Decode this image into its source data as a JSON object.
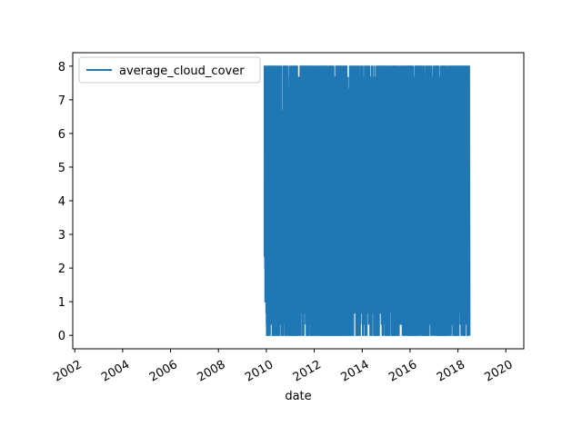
{
  "chart_data": {
    "type": "line",
    "title": "",
    "xlabel": "date",
    "ylabel": "",
    "xlim": [
      "2001-12-01",
      "2020-10-01"
    ],
    "ylim": [
      -0.4,
      8.4
    ],
    "x_ticks": [
      "2002",
      "2004",
      "2006",
      "2008",
      "2010",
      "2012",
      "2014",
      "2016",
      "2018",
      "2020"
    ],
    "y_ticks": [
      0,
      1,
      2,
      3,
      4,
      5,
      6,
      7,
      8
    ],
    "grid": false,
    "legend": {
      "position": "top-left",
      "entries": [
        "average_cloud_cover"
      ]
    },
    "series": [
      {
        "name": "average_cloud_cover",
        "color": "#1f77b4",
        "x_range": [
          "2009-12-01",
          "2018-06-30"
        ],
        "y_min": 0,
        "y_max": 8,
        "frequency": "daily",
        "description_of_values": "dense daily values oscillating between 0 and 8"
      }
    ]
  }
}
